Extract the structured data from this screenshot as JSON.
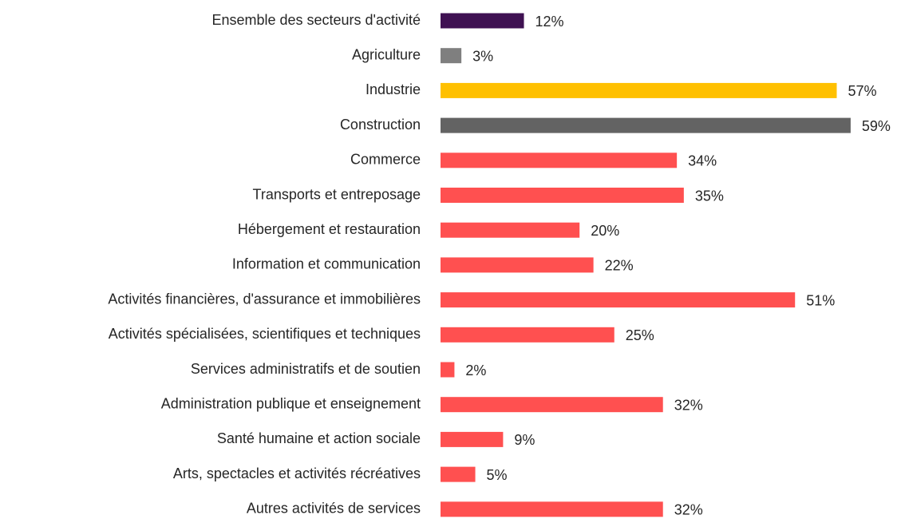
{
  "chart_data": {
    "type": "bar",
    "orientation": "horizontal",
    "categories": [
      "Ensemble des secteurs d'activité",
      "Agriculture",
      "Industrie",
      "Construction",
      "Commerce",
      "Transports et entreposage",
      "Hébergement et restauration",
      "Information et communication",
      "Activités financières, d'assurance et immobilières",
      "Activités spécialisées, scientifiques et techniques",
      "Services administratifs et de soutien",
      "Administration publique et enseignement",
      "Santé humaine et action sociale",
      "Arts, spectacles et activités récréatives",
      "Autres activités de services"
    ],
    "values": [
      12,
      3,
      57,
      59,
      34,
      35,
      20,
      22,
      51,
      25,
      2,
      32,
      9,
      5,
      32
    ],
    "value_labels": [
      "12%",
      "3%",
      "57%",
      "59%",
      "34%",
      "35%",
      "20%",
      "22%",
      "51%",
      "25%",
      "2%",
      "32%",
      "9%",
      "5%",
      "32%"
    ],
    "colors": [
      "#3f1152",
      "#7f7f7f",
      "#ffc000",
      "#636363",
      "#ff5050",
      "#ff5050",
      "#ff5050",
      "#ff5050",
      "#ff5050",
      "#ff5050",
      "#ff5050",
      "#ff5050",
      "#ff5050",
      "#ff5050",
      "#ff5050"
    ]
  }
}
